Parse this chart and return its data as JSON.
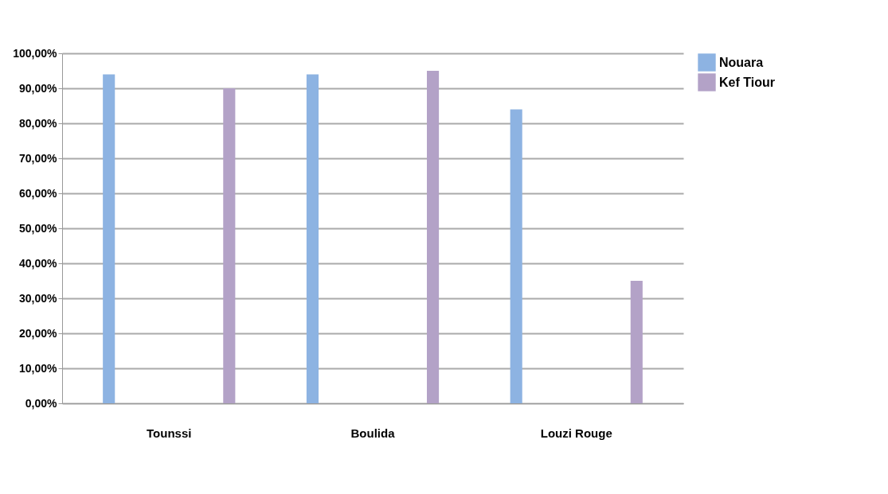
{
  "chart_data": {
    "type": "bar",
    "categories": [
      "Tounssi",
      "Boulida",
      "Louzi Rouge"
    ],
    "series": [
      {
        "name": "Nouara",
        "color": "#8db3e2",
        "values": [
          94,
          94,
          84
        ]
      },
      {
        "name": "Kef Tiour",
        "color": "#b3a2c7",
        "values": [
          90,
          95,
          35
        ]
      }
    ],
    "ylim": [
      0,
      100
    ],
    "yticks": [
      {
        "value": 0,
        "label": "0,00%"
      },
      {
        "value": 10,
        "label": "10,00%"
      },
      {
        "value": 20,
        "label": "20,00%"
      },
      {
        "value": 30,
        "label": "30,00%"
      },
      {
        "value": 40,
        "label": "40,00%"
      },
      {
        "value": 50,
        "label": "50,00%"
      },
      {
        "value": 60,
        "label": "60,00%"
      },
      {
        "value": 70,
        "label": "70,00%"
      },
      {
        "value": 80,
        "label": "80,00%"
      },
      {
        "value": 90,
        "label": "90,00%"
      },
      {
        "value": 100,
        "label": "100,00%"
      }
    ],
    "grid": "y",
    "legend": "right"
  }
}
